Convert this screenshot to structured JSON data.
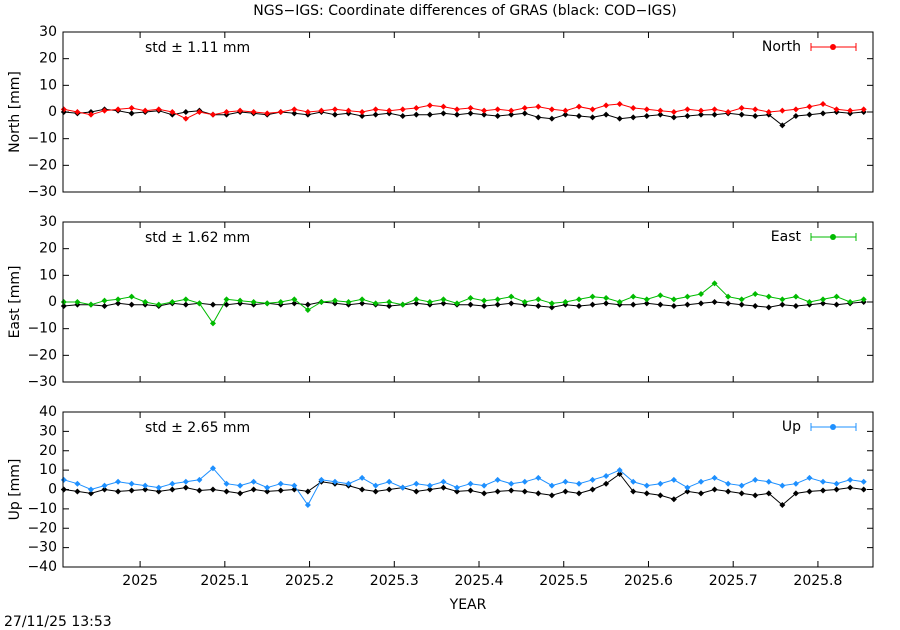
{
  "title": "NGS−IGS: Coordinate differences of GRAS (black: COD−IGS)",
  "timestamp": "27/11/25 13:53",
  "chart_data": [
    {
      "type": "line",
      "ylabel": "North [mm]",
      "annotation": "std ± 1.11 mm",
      "annotation_color": "#ff0000",
      "x": [
        2024.91,
        2024.926,
        2024.942,
        2024.958,
        2024.974,
        2024.99,
        2025.006,
        2025.022,
        2025.038,
        2025.054,
        2025.07,
        2025.086,
        2025.102,
        2025.118,
        2025.134,
        2025.15,
        2025.166,
        2025.182,
        2025.198,
        2025.214,
        2025.23,
        2025.246,
        2025.262,
        2025.278,
        2025.294,
        2025.31,
        2025.326,
        2025.342,
        2025.358,
        2025.374,
        2025.39,
        2025.406,
        2025.422,
        2025.438,
        2025.454,
        2025.47,
        2025.486,
        2025.502,
        2025.518,
        2025.534,
        2025.55,
        2025.566,
        2025.582,
        2025.598,
        2025.614,
        2025.63,
        2025.646,
        2025.662,
        2025.678,
        2025.694,
        2025.71,
        2025.726,
        2025.742,
        2025.758,
        2025.774,
        2025.79,
        2025.806,
        2025.822,
        2025.838,
        2025.854
      ],
      "xlim": [
        2024.909,
        2025.865
      ],
      "xticks": [
        2025,
        2025.1,
        2025.2,
        2025.3,
        2025.4,
        2025.5,
        2025.6,
        2025.7,
        2025.8
      ],
      "ylim": [
        -30,
        30
      ],
      "yticks": [
        {
          "value": -30,
          "label": "−30"
        },
        {
          "value": -20,
          "label": "−20"
        },
        {
          "value": -10,
          "label": "−10"
        },
        0,
        10,
        20,
        30
      ],
      "legend": "top-right",
      "series": [
        {
          "name": "North",
          "color": "#ff0000",
          "values": [
            1,
            0,
            -1,
            0.5,
            1,
            1.5,
            0.5,
            1,
            0,
            -2.5,
            0,
            -1,
            0,
            0.5,
            0,
            -0.5,
            0,
            1,
            0,
            0.5,
            1,
            0.5,
            0,
            1,
            0.5,
            1,
            1.5,
            2.5,
            2,
            1,
            1.5,
            0.5,
            1,
            0.5,
            1.5,
            2,
            1,
            0.5,
            2,
            1,
            2.5,
            3,
            1.5,
            1,
            0.5,
            0,
            1,
            0.5,
            1,
            0,
            1.5,
            1,
            0,
            0.5,
            1,
            2,
            3,
            1,
            0.5,
            1
          ]
        },
        {
          "color": "#000000",
          "values": [
            0,
            -0.5,
            0,
            1,
            0.5,
            -0.5,
            0,
            0.5,
            -1,
            0,
            0.5,
            -1,
            -1,
            0,
            -0.5,
            -1,
            0,
            -0.5,
            -1,
            0,
            -1,
            -0.5,
            -1.5,
            -1,
            -0.5,
            -1.5,
            -1,
            -1,
            -0.5,
            -1,
            -0.5,
            -1,
            -1.5,
            -1,
            -0.5,
            -2,
            -2.5,
            -1,
            -1.5,
            -2,
            -1,
            -2.5,
            -2,
            -1.5,
            -1,
            -2,
            -1.5,
            -1,
            -1,
            -0.5,
            -1,
            -1.5,
            -1,
            -5,
            -1.5,
            -1,
            -0.5,
            0,
            -0.5,
            0
          ]
        }
      ]
    },
    {
      "type": "line",
      "ylabel": "East [mm]",
      "annotation": "std ± 1.62 mm",
      "annotation_color": "#00bb00",
      "x": [
        2024.91,
        2024.926,
        2024.942,
        2024.958,
        2024.974,
        2024.99,
        2025.006,
        2025.022,
        2025.038,
        2025.054,
        2025.07,
        2025.086,
        2025.102,
        2025.118,
        2025.134,
        2025.15,
        2025.166,
        2025.182,
        2025.198,
        2025.214,
        2025.23,
        2025.246,
        2025.262,
        2025.278,
        2025.294,
        2025.31,
        2025.326,
        2025.342,
        2025.358,
        2025.374,
        2025.39,
        2025.406,
        2025.422,
        2025.438,
        2025.454,
        2025.47,
        2025.486,
        2025.502,
        2025.518,
        2025.534,
        2025.55,
        2025.566,
        2025.582,
        2025.598,
        2025.614,
        2025.63,
        2025.646,
        2025.662,
        2025.678,
        2025.694,
        2025.71,
        2025.726,
        2025.742,
        2025.758,
        2025.774,
        2025.79,
        2025.806,
        2025.822,
        2025.838,
        2025.854
      ],
      "xlim": [
        2024.909,
        2025.865
      ],
      "xticks": [
        2025,
        2025.1,
        2025.2,
        2025.3,
        2025.4,
        2025.5,
        2025.6,
        2025.7,
        2025.8
      ],
      "ylim": [
        -30,
        30
      ],
      "yticks": [
        {
          "value": -30,
          "label": "−30"
        },
        {
          "value": -20,
          "label": "−20"
        },
        {
          "value": -10,
          "label": "−10"
        },
        0,
        10,
        20,
        30
      ],
      "legend": "top-right",
      "series": [
        {
          "name": "East",
          "color": "#00bb00",
          "values": [
            0,
            0,
            -1,
            0.5,
            1,
            2,
            0,
            -1,
            0,
            1,
            -0.5,
            -8,
            1,
            0.5,
            0,
            -0.5,
            0,
            1,
            -3,
            0,
            0.5,
            0,
            1,
            -0.5,
            0,
            -1,
            1,
            0,
            1,
            -0.5,
            1.5,
            0.5,
            1,
            2,
            0,
            1,
            -0.5,
            0,
            1,
            2,
            1.5,
            0,
            2,
            1,
            2.5,
            1,
            2,
            3,
            7,
            2,
            1,
            3,
            2,
            1,
            2,
            0,
            1,
            2,
            0,
            1
          ]
        },
        {
          "color": "#000000",
          "values": [
            -1.5,
            -1,
            -1,
            -1.5,
            -0.5,
            -1,
            -1,
            -1.5,
            -0.5,
            -1,
            -0.5,
            -1,
            -1,
            -0.5,
            -1,
            -0.5,
            -1,
            -0.5,
            -1,
            0,
            -0.5,
            -1,
            -0.5,
            -1,
            -1.5,
            -1,
            -0.5,
            -1,
            -0.5,
            -1,
            -1,
            -1.5,
            -1,
            -0.5,
            -1,
            -1.5,
            -2,
            -1,
            -1.5,
            -1,
            -0.5,
            -1,
            -1,
            -0.5,
            -1,
            -1.5,
            -1,
            -0.5,
            0,
            -0.5,
            -1,
            -1.5,
            -2,
            -1,
            -1.5,
            -1,
            -0.5,
            -1,
            -0.5,
            0
          ]
        }
      ]
    },
    {
      "type": "line",
      "ylabel": "Up [mm]",
      "xlabel": "YEAR",
      "annotation": "std ± 2.65 mm",
      "annotation_color": "#1e90ff",
      "x": [
        2024.91,
        2024.926,
        2024.942,
        2024.958,
        2024.974,
        2024.99,
        2025.006,
        2025.022,
        2025.038,
        2025.054,
        2025.07,
        2025.086,
        2025.102,
        2025.118,
        2025.134,
        2025.15,
        2025.166,
        2025.182,
        2025.198,
        2025.214,
        2025.23,
        2025.246,
        2025.262,
        2025.278,
        2025.294,
        2025.31,
        2025.326,
        2025.342,
        2025.358,
        2025.374,
        2025.39,
        2025.406,
        2025.422,
        2025.438,
        2025.454,
        2025.47,
        2025.486,
        2025.502,
        2025.518,
        2025.534,
        2025.55,
        2025.566,
        2025.582,
        2025.598,
        2025.614,
        2025.63,
        2025.646,
        2025.662,
        2025.678,
        2025.694,
        2025.71,
        2025.726,
        2025.742,
        2025.758,
        2025.774,
        2025.79,
        2025.806,
        2025.822,
        2025.838,
        2025.854
      ],
      "xlim": [
        2024.909,
        2025.865
      ],
      "xticks": [
        2025,
        2025.1,
        2025.2,
        2025.3,
        2025.4,
        2025.5,
        2025.6,
        2025.7,
        2025.8
      ],
      "ylim": [
        -40,
        40
      ],
      "yticks": [
        {
          "value": -40,
          "label": "−40"
        },
        {
          "value": -30,
          "label": "−30"
        },
        {
          "value": -20,
          "label": "−20"
        },
        {
          "value": -10,
          "label": "−10"
        },
        0,
        10,
        20,
        30,
        40
      ],
      "legend": "top-right",
      "series": [
        {
          "name": "Up",
          "color": "#1e90ff",
          "values": [
            5,
            3,
            0,
            2,
            4,
            3,
            2,
            1,
            3,
            4,
            5,
            11,
            3,
            2,
            4,
            1,
            3,
            2,
            -8,
            5,
            4,
            3,
            6,
            2,
            4,
            1,
            3,
            2,
            4,
            1,
            3,
            2,
            5,
            3,
            4,
            6,
            2,
            4,
            3,
            5,
            7,
            10,
            4,
            2,
            3,
            5,
            1,
            4,
            6,
            3,
            2,
            5,
            4,
            2,
            3,
            6,
            4,
            3,
            5,
            4
          ]
        },
        {
          "color": "#000000",
          "values": [
            0,
            -1,
            -2,
            0,
            -1,
            -0.5,
            0,
            -1,
            0,
            1,
            -0.5,
            0,
            -1,
            -2,
            0,
            -1,
            -0.5,
            0,
            -1,
            4,
            3,
            2,
            0,
            -1,
            0,
            1,
            -1,
            0,
            1,
            -1,
            -0.5,
            -2,
            -1,
            -0.5,
            -1,
            -2,
            -3,
            -1,
            -2,
            0,
            3,
            8,
            -1,
            -2,
            -3,
            -5,
            -1,
            -2,
            0,
            -1,
            -2,
            -3,
            -2,
            -8,
            -2,
            -1,
            -0.5,
            0,
            1,
            0
          ]
        }
      ]
    }
  ]
}
